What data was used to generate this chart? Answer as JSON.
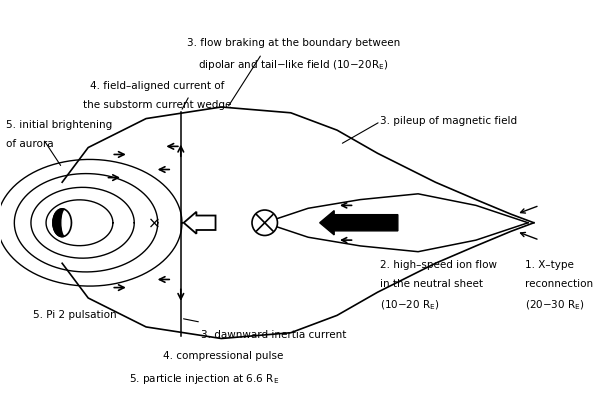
{
  "bg_color": "#ffffff",
  "line_color": "#000000",
  "title": "",
  "annotations": {
    "flow_braking": "3. flow braking at the boundary between\ndipolar and tail–like field (10–20R_E)",
    "field_aligned": "4. field–aligned current of\nthe substorm current wedge",
    "initial_bright": "5. initial brightening\nof aurora",
    "pileup": "3. pileup of magnetic field",
    "high_speed": "2. high–speed ion flow\nin the neutral sheet\n(10–20 R_E)",
    "xtype": "1. X–type\nreconnection\n(20–30 R_E)",
    "pi2": "5. Pi 2 pulsation",
    "dawnward": "3. dawnward inertia current",
    "compressional": "4. compressional pulse",
    "particle": "5. particle injection at 6.6 R_E"
  },
  "figsize": [
    6.13,
    4.05
  ],
  "dpi": 100
}
